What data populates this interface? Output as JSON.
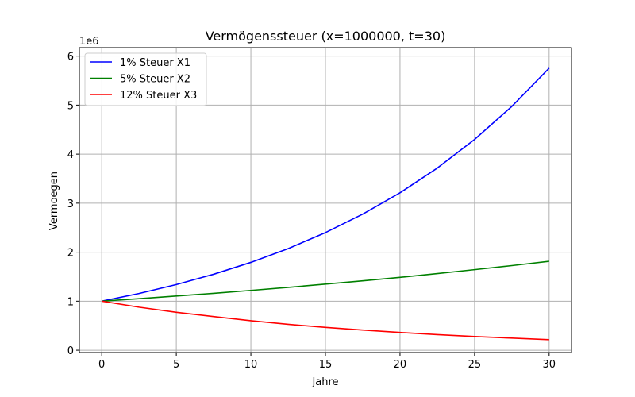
{
  "chart_data": {
    "type": "line",
    "title": "Vermögenssteuer (x=1000000, t=30)",
    "xlabel": "Jahre",
    "ylabel": "Vermoegen",
    "y_offset_label": "1e6",
    "xlim": [
      -1.5,
      31.5
    ],
    "ylim": [
      -0.0475,
      6.1725
    ],
    "x_ticks": [
      0,
      5,
      10,
      15,
      20,
      25,
      30
    ],
    "y_ticks": [
      0,
      1,
      2,
      3,
      4,
      5,
      6
    ],
    "grid": true,
    "legend_placement": "top-left",
    "series": [
      {
        "name": "1% Steuer X1",
        "color": "#0000ff",
        "x": [
          0,
          2.5,
          5,
          7.5,
          10,
          12.5,
          15,
          17.5,
          20,
          22.5,
          25,
          27.5,
          30
        ],
        "y": [
          1.0,
          1.157,
          1.339,
          1.549,
          1.792,
          2.073,
          2.399,
          2.776,
          3.211,
          3.716,
          4.299,
          4.974,
          5.755
        ]
      },
      {
        "name": "5% Steuer X2",
        "color": "#008000",
        "x": [
          0,
          2.5,
          5,
          7.5,
          10,
          12.5,
          15,
          17.5,
          20,
          22.5,
          25,
          27.5,
          30
        ],
        "y": [
          1.0,
          1.051,
          1.105,
          1.161,
          1.22,
          1.282,
          1.348,
          1.416,
          1.486,
          1.563,
          1.643,
          1.726,
          1.814
        ]
      },
      {
        "name": "12% Steuer X3",
        "color": "#ff0000",
        "x": [
          0,
          2.5,
          5,
          7.5,
          10,
          12.5,
          15,
          17.5,
          20,
          22.5,
          25,
          27.5,
          30
        ],
        "y": [
          1.0,
          0.878,
          0.774,
          0.686,
          0.601,
          0.528,
          0.466,
          0.411,
          0.362,
          0.318,
          0.28,
          0.247,
          0.215
        ]
      }
    ]
  }
}
